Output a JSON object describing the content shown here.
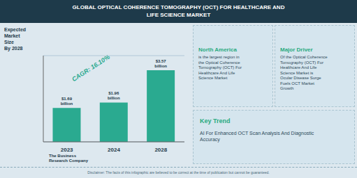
{
  "chart_data": {
    "type": "bar",
    "title": "GLOBAL OPTICAL COHERENCE TOMOGRAPHY (OCT) FOR HEALTHCARE AND\nLIFE SCIENCE MARKET",
    "categories": [
      "2023",
      "2024",
      "2028"
    ],
    "values": [
      1.69,
      1.96,
      3.57
    ],
    "value_labels": [
      "$1.69\nbillion",
      "$1.96\nbillion",
      "$3.57\nbillion"
    ],
    "data_labels": true,
    "color": "#2aaa90",
    "ylim": [
      0,
      4.3
    ],
    "yticks": [
      0,
      1,
      2,
      3,
      4
    ],
    "grid": true,
    "tick_labels": "x",
    "annotations": [
      "Expected\nMarket\nSize\nBy 2028",
      "CAGR: 16.10%",
      "North America",
      "is the largest region in\nthe Optical Coherence\nTomography (OCT) For\nHealthcare And Life\nScience Market",
      "Major Driver",
      "Of the Optical Coherence\nTomography (OCT) For\nHealthcare And Life\nScience Market is\nOcular Disease Surge\nFuels OCT Market\nGrowth",
      "Key Trend",
      "AI For Enhanced OCT Scan Analysis And Diagnostic\nAccuracy",
      "The Business\nResearch Company",
      "Disclaimer: The facts of this infographic are believed to be correct at the time of publication but cannot be guaranteed."
    ]
  }
}
